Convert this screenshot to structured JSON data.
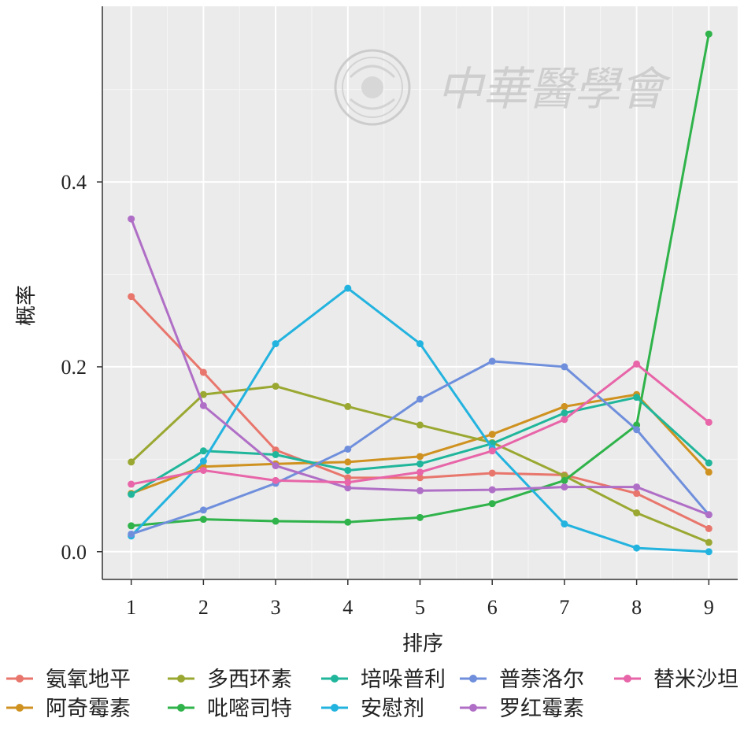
{
  "chart_data": {
    "type": "line",
    "title": "",
    "xlabel": "排序",
    "ylabel": "概率",
    "x": [
      1,
      2,
      3,
      4,
      5,
      6,
      7,
      8,
      9
    ],
    "xticks": [
      "1",
      "2",
      "3",
      "4",
      "5",
      "6",
      "7",
      "8",
      "9"
    ],
    "yticks": [
      "0.0",
      "0.2",
      "0.4"
    ],
    "ytick_values": [
      0.0,
      0.2,
      0.4
    ],
    "xlim": [
      0.6,
      9.4
    ],
    "ylim": [
      -0.03,
      0.59
    ],
    "grid": true,
    "legend_position": "bottom",
    "series": [
      {
        "name": "氨氧地平",
        "color": "#e8766c",
        "values": [
          0.276,
          0.194,
          0.11,
          0.08,
          0.08,
          0.085,
          0.083,
          0.063,
          0.025
        ]
      },
      {
        "name": "阿奇霉素",
        "color": "#cf9220",
        "values": [
          0.063,
          0.092,
          0.095,
          0.097,
          0.103,
          0.127,
          0.157,
          0.17,
          0.086
        ]
      },
      {
        "name": "多西环素",
        "color": "#9aa832",
        "values": [
          0.097,
          0.17,
          0.179,
          0.157,
          0.137,
          0.118,
          0.082,
          0.042,
          0.01
        ]
      },
      {
        "name": "吡嘧司特",
        "color": "#2fb34a",
        "values": [
          0.028,
          0.035,
          0.033,
          0.032,
          0.037,
          0.052,
          0.077,
          0.137,
          0.56
        ]
      },
      {
        "name": "培哚普利",
        "color": "#20b69b",
        "values": [
          0.062,
          0.109,
          0.105,
          0.088,
          0.095,
          0.117,
          0.15,
          0.167,
          0.096
        ]
      },
      {
        "name": "安慰剂",
        "color": "#23b3df",
        "values": [
          0.017,
          0.098,
          0.225,
          0.285,
          0.225,
          0.112,
          0.03,
          0.004,
          0.0
        ]
      },
      {
        "name": "普萘洛尔",
        "color": "#6f8fdc",
        "values": [
          0.019,
          0.045,
          0.074,
          0.111,
          0.165,
          0.206,
          0.2,
          0.132,
          0.04
        ]
      },
      {
        "name": "罗红霉素",
        "color": "#b06fc6",
        "values": [
          0.36,
          0.158,
          0.093,
          0.069,
          0.066,
          0.067,
          0.07,
          0.07,
          0.04
        ]
      },
      {
        "name": "替米沙坦",
        "color": "#e765a8",
        "values": [
          0.073,
          0.088,
          0.077,
          0.075,
          0.086,
          0.109,
          0.143,
          0.203,
          0.14
        ]
      }
    ]
  },
  "watermark": {
    "text": "中華醫學會"
  }
}
